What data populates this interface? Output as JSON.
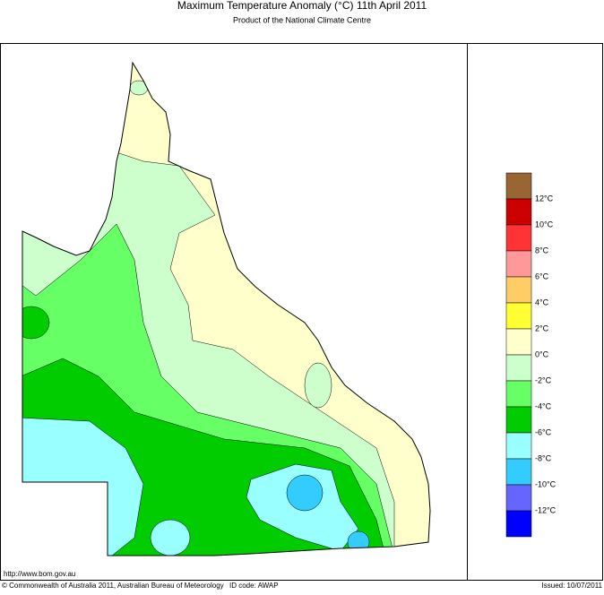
{
  "header": {
    "title": "Maximum Temperature Anomaly (°C)  11th April 2011",
    "subtitle": "Product of the National Climate Centre"
  },
  "legend": {
    "colors": [
      "#996633",
      "#cc0000",
      "#ff3333",
      "#ff9999",
      "#ffcc66",
      "#ffff33",
      "#ffffcc",
      "#ccffcc",
      "#66ff66",
      "#00cc00",
      "#99ffff",
      "#33ccff",
      "#6666ff",
      "#0000ff"
    ],
    "labels": [
      "12°C",
      "10°C",
      "8°C",
      "6°C",
      "4°C",
      "2°C",
      "0°C",
      "-2°C",
      "-4°C",
      "-6°C",
      "-8°C",
      "-10°C",
      "-12°C"
    ]
  },
  "footer": {
    "url": "http://www.bom.gov.au",
    "copyright": "© Commonwealth of Australia 2011, Australian Bureau of Meteorology",
    "id_code": "ID code: AWAP",
    "issued": "Issued: 10/07/2011"
  }
}
